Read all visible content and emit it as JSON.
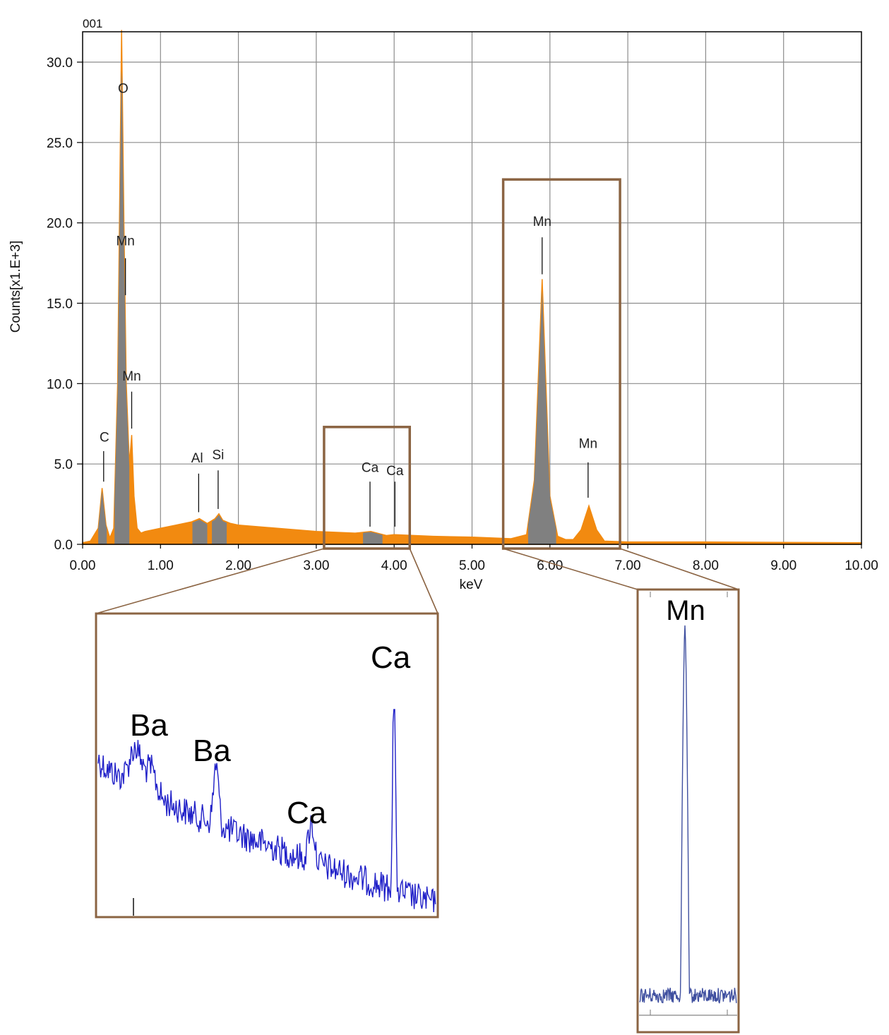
{
  "colors": {
    "spectrum_fill": "#F28A10",
    "peak_fill": "#808080",
    "zoom_box": "#8B6443",
    "zoom_trace": "#2020C8",
    "mn_zoom_trace": "#4050A0",
    "grid": "#8c8c8c"
  },
  "chart_data": [
    {
      "type": "area",
      "title": "001",
      "xlabel": "keV",
      "ylabel": "Counts[x1.E+3]",
      "xlim": [
        0,
        10
      ],
      "ylim": [
        0,
        32
      ],
      "grid": true,
      "x_ticks": [
        "0.00",
        "1.00",
        "2.00",
        "3.00",
        "4.00",
        "5.00",
        "6.00",
        "7.00",
        "8.00",
        "9.00",
        "10.00"
      ],
      "y_ticks": [
        "0.0",
        "5.0",
        "10.0",
        "15.0",
        "20.0",
        "25.0",
        "30.0"
      ],
      "series": [
        {
          "x": [
            0.0,
            0.1,
            0.2,
            0.25,
            0.3,
            0.35,
            0.4,
            0.45,
            0.5,
            0.53,
            0.56,
            0.6,
            0.63,
            0.66,
            0.7,
            0.75,
            0.8,
            1.0,
            1.2,
            1.4,
            1.5,
            1.6,
            1.7,
            1.75,
            1.8,
            1.9,
            2.0,
            2.5,
            3.0,
            3.5,
            3.7,
            3.9,
            4.0,
            4.5,
            5.0,
            5.5,
            5.7,
            5.8,
            5.9,
            6.0,
            6.1,
            6.2,
            6.3,
            6.4,
            6.5,
            6.6,
            6.7,
            7.0,
            8.0,
            9.0,
            10.0
          ],
          "y": [
            0.1,
            0.2,
            1.0,
            3.5,
            1.2,
            0.4,
            1.0,
            10.0,
            32.0,
            20.0,
            10.0,
            5.0,
            6.8,
            3.0,
            1.0,
            0.7,
            0.8,
            1.0,
            1.2,
            1.4,
            1.6,
            1.3,
            1.6,
            1.9,
            1.5,
            1.3,
            1.2,
            1.0,
            0.8,
            0.7,
            0.8,
            0.55,
            0.6,
            0.5,
            0.45,
            0.35,
            0.6,
            4.0,
            16.5,
            3.0,
            0.5,
            0.3,
            0.3,
            0.9,
            2.4,
            0.9,
            0.2,
            0.15,
            0.15,
            0.12,
            0.1
          ]
        }
      ],
      "peak_labels": [
        {
          "text": "O",
          "x": 0.52,
          "y": 32.0
        },
        {
          "text": "C",
          "x": 0.27,
          "y": 3.5
        },
        {
          "text": "Mn",
          "x": 0.55,
          "y": 20.0
        },
        {
          "text": "Mn",
          "x": 0.63,
          "y": 6.8
        },
        {
          "text": "Al",
          "x": 1.49,
          "y": 1.6
        },
        {
          "text": "Si",
          "x": 1.74,
          "y": 1.9
        },
        {
          "text": "Ca",
          "x": 3.69,
          "y": 0.8
        },
        {
          "text": "Ca",
          "x": 4.01,
          "y": 0.6
        },
        {
          "text": "Mn",
          "x": 5.9,
          "y": 16.5
        },
        {
          "text": "Mn",
          "x": 6.49,
          "y": 2.4
        }
      ],
      "zoom_regions": [
        {
          "x_range": [
            3.1,
            4.2
          ],
          "y_range": [
            0,
            7.3
          ]
        },
        {
          "x_range": [
            5.4,
            6.9
          ],
          "y_range": [
            0,
            22.7
          ]
        }
      ]
    },
    {
      "type": "line",
      "note_region": "inset-left",
      "peak_labels": [
        {
          "text": "Ba"
        },
        {
          "text": "Ba"
        },
        {
          "text": "Ca"
        },
        {
          "text": "Ca"
        }
      ]
    },
    {
      "type": "line",
      "note_region": "inset-right",
      "peak_labels": [
        {
          "text": "Mn"
        }
      ]
    }
  ]
}
